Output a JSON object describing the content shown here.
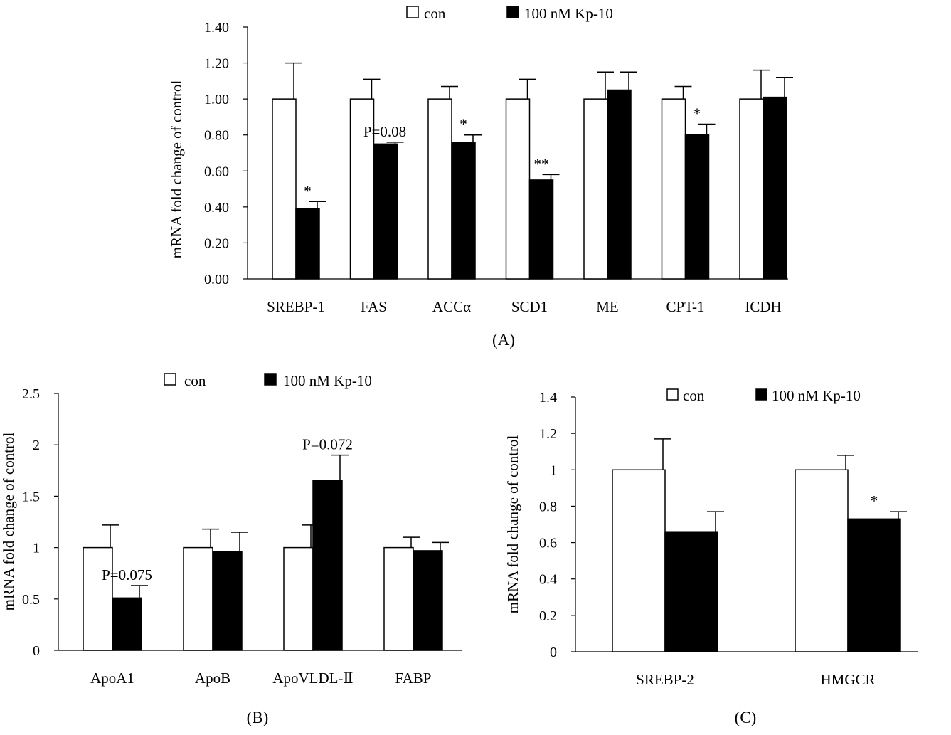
{
  "figure": {
    "colors": {
      "control": "#ffffff",
      "treatment": "#000000",
      "stroke": "#000000"
    }
  },
  "chart_data": [
    {
      "type": "bar",
      "panel_label": "(A)",
      "title": "",
      "xlabel": "",
      "ylabel": "mRNA fold change of control",
      "ylim": [
        0,
        1.4
      ],
      "y_ticks": [
        "0.00",
        "0.20",
        "0.40",
        "0.60",
        "0.80",
        "1.00",
        "1.20",
        "1.40"
      ],
      "legend_position": "top",
      "categories": [
        "SREBP-1",
        "FAS",
        "ACCα",
        "SCD1",
        "ME",
        "CPT-1",
        "ICDH"
      ],
      "series": [
        {
          "name": "con",
          "values": [
            1.0,
            1.0,
            1.0,
            1.0,
            1.0,
            1.0,
            1.0
          ],
          "errors": [
            0.2,
            0.11,
            0.07,
            0.11,
            0.15,
            0.07,
            0.16
          ]
        },
        {
          "name": "100 nM Kp-10",
          "values": [
            0.39,
            0.75,
            0.76,
            0.55,
            1.05,
            0.8,
            1.01
          ],
          "errors": [
            0.04,
            0.01,
            0.04,
            0.03,
            0.1,
            0.06,
            0.11
          ]
        }
      ],
      "annotations": [
        "*",
        "P=0.08",
        "*",
        "**",
        "",
        "*",
        ""
      ]
    },
    {
      "type": "bar",
      "panel_label": "(B)",
      "title": "",
      "xlabel": "",
      "ylabel": "mRNA fold change of control",
      "ylim": [
        0,
        2.5
      ],
      "y_ticks": [
        "0",
        "0.5",
        "1",
        "1.5",
        "2",
        "2.5"
      ],
      "legend_position": "top",
      "categories": [
        "ApoA1",
        "ApoB",
        "ApoVLDL-Ⅱ",
        "FABP"
      ],
      "series": [
        {
          "name": "con",
          "values": [
            1.0,
            1.0,
            1.0,
            1.0
          ],
          "errors": [
            0.22,
            0.18,
            0.22,
            0.1
          ]
        },
        {
          "name": "100 nM Kp-10",
          "values": [
            0.51,
            0.96,
            1.65,
            0.97
          ],
          "errors": [
            0.12,
            0.19,
            0.25,
            0.08
          ]
        }
      ],
      "annotations": [
        "P=0.075",
        "",
        "P=0.072",
        ""
      ]
    },
    {
      "type": "bar",
      "panel_label": "(C)",
      "title": "",
      "xlabel": "",
      "ylabel": "mRNA fold change of control",
      "ylim": [
        0,
        1.4
      ],
      "y_ticks": [
        "0",
        "0.2",
        "0.4",
        "0.6",
        "0.8",
        "1",
        "1.2",
        "1.4"
      ],
      "legend_position": "top",
      "categories": [
        "SREBP-2",
        "HMGCR"
      ],
      "series": [
        {
          "name": "con",
          "values": [
            1.0,
            1.0
          ],
          "errors": [
            0.17,
            0.08
          ]
        },
        {
          "name": "100 nM Kp-10",
          "values": [
            0.66,
            0.73
          ],
          "errors": [
            0.11,
            0.04
          ]
        }
      ],
      "annotations": [
        "",
        "*"
      ]
    }
  ]
}
